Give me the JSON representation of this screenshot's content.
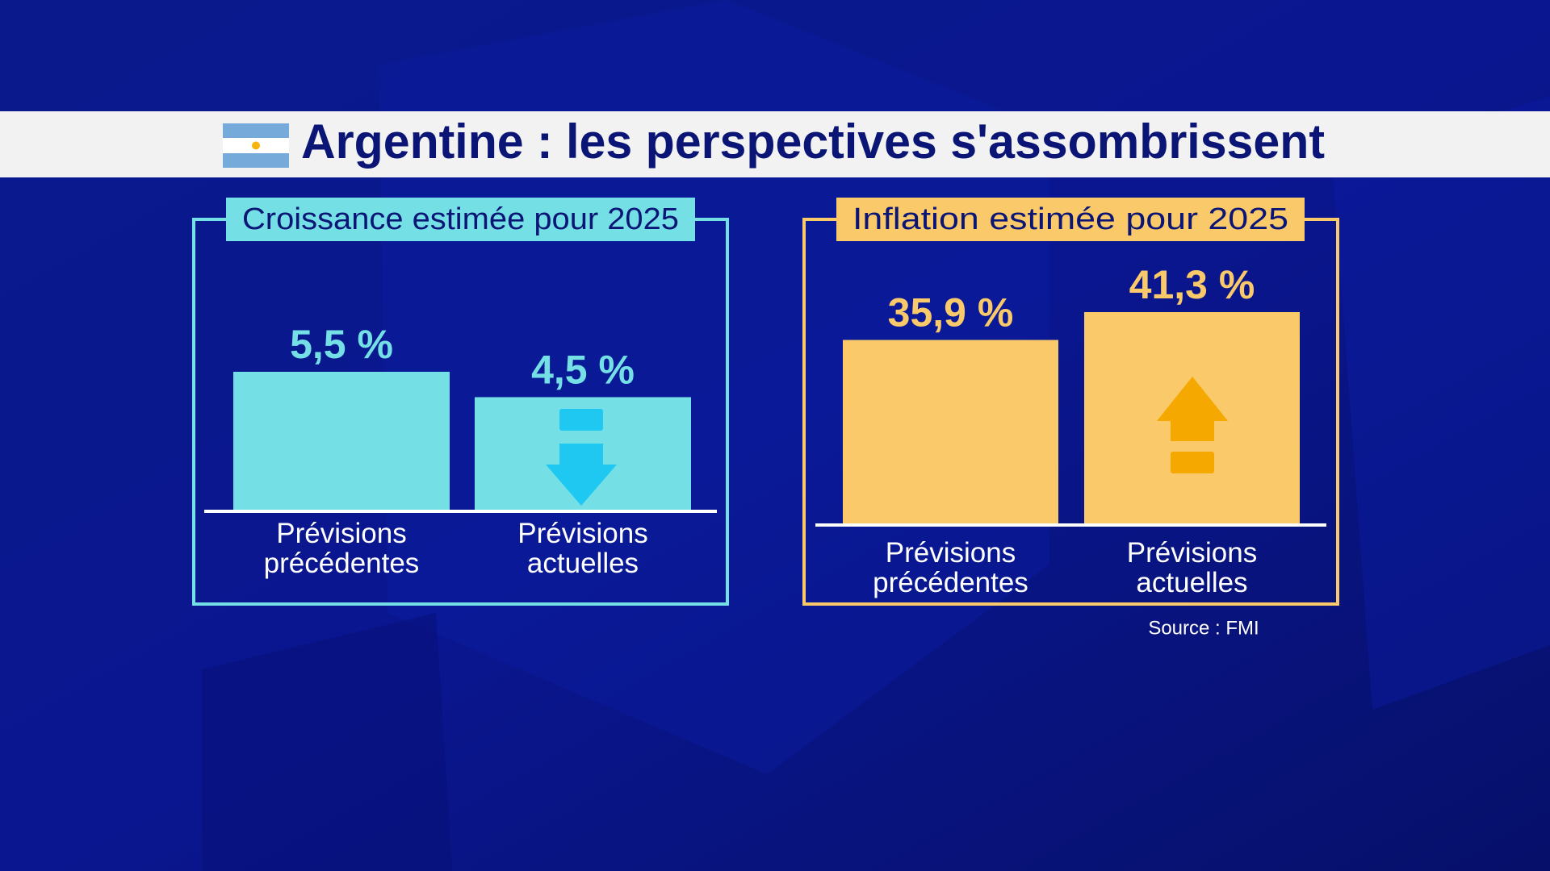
{
  "title": "Argentine : les perspectives s'assombrissent",
  "source": "Source : FMI",
  "chart_data": [
    {
      "type": "bar",
      "title": "Croissance estimée pour 2025",
      "categories": [
        "Prévisions précédentes",
        "Prévisions actuelles"
      ],
      "values": [
        5.5,
        4.5
      ],
      "value_labels": [
        "5,5 %",
        "4,5 %"
      ],
      "color": "#74e0e6"
    },
    {
      "type": "bar",
      "title": "Inflation estimée pour 2025",
      "categories": [
        "Prévisions précédentes",
        "Prévisions actuelles"
      ],
      "values": [
        35.9,
        41.3
      ],
      "value_labels": [
        "35,9 %",
        "41,3 %"
      ],
      "color": "#f9c96a"
    }
  ]
}
